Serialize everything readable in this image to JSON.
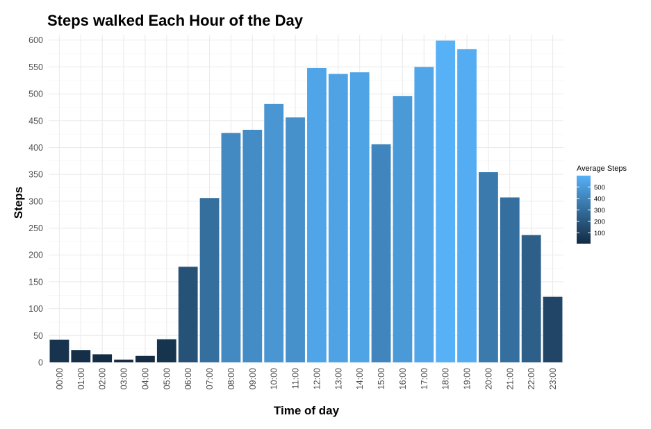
{
  "chart_data": {
    "type": "bar",
    "title": "Steps walked Each Hour of the Day",
    "xlabel": "Time of day",
    "ylabel": "Steps",
    "categories": [
      "00:00",
      "01:00",
      "02:00",
      "03:00",
      "04:00",
      "05:00",
      "06:00",
      "07:00",
      "08:00",
      "09:00",
      "10:00",
      "11:00",
      "12:00",
      "13:00",
      "14:00",
      "15:00",
      "16:00",
      "17:00",
      "18:00",
      "19:00",
      "20:00",
      "21:00",
      "22:00",
      "23:00"
    ],
    "values": [
      42,
      23,
      15,
      5,
      12,
      43,
      178,
      306,
      427,
      433,
      481,
      456,
      548,
      537,
      540,
      406,
      496,
      550,
      599,
      583,
      354,
      307,
      237,
      122
    ],
    "ylim": [
      0,
      610
    ],
    "yticks": [
      0,
      50,
      100,
      150,
      200,
      250,
      300,
      350,
      400,
      450,
      500,
      550,
      600
    ],
    "ytick_labels": [
      "0",
      "50",
      "100",
      "150",
      "200",
      "250",
      "300",
      "350",
      "400",
      "450",
      "500",
      "550",
      "600"
    ],
    "grid": true,
    "fill_scale": {
      "low_color": "#132B43",
      "high_color": "#56B1F7"
    },
    "legend": {
      "title": "Average Steps",
      "placement": "right",
      "ticks": [
        100,
        200,
        300,
        400,
        500
      ],
      "tick_labels": [
        "100",
        "200",
        "300",
        "400",
        "500"
      ]
    }
  }
}
